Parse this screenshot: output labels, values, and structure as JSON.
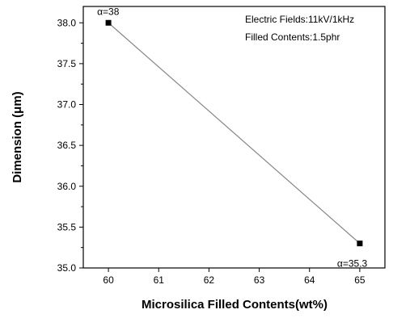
{
  "chart_data": {
    "type": "line",
    "x": [
      60,
      65
    ],
    "series": [
      {
        "values": [
          38.0,
          35.3
        ]
      }
    ],
    "data_labels": [
      "α=38",
      "α=35.3"
    ],
    "xlabel": "Microsilica Filled Contents(wt%)",
    "ylabel": "Dimension (μm)",
    "xlim": [
      59.5,
      65.5
    ],
    "ylim": [
      35.0,
      38.2
    ],
    "xticks": [
      60,
      61,
      62,
      63,
      64,
      65
    ],
    "yticks": [
      35.0,
      35.5,
      36.0,
      36.5,
      37.0,
      37.5,
      38.0
    ],
    "xtick_labels": [
      "60",
      "61",
      "62",
      "63",
      "64",
      "65"
    ],
    "ytick_labels": [
      "35.0",
      "35.5",
      "36.0",
      "36.5",
      "37.0",
      "37.5",
      "38.0"
    ],
    "annotations": [
      "Electric Fields:11kV/1kHz",
      "Filled Contents:1.5phr"
    ],
    "grid": false,
    "colors": {
      "line": "#888888",
      "marker": "#000000",
      "axis": "#000000"
    }
  }
}
